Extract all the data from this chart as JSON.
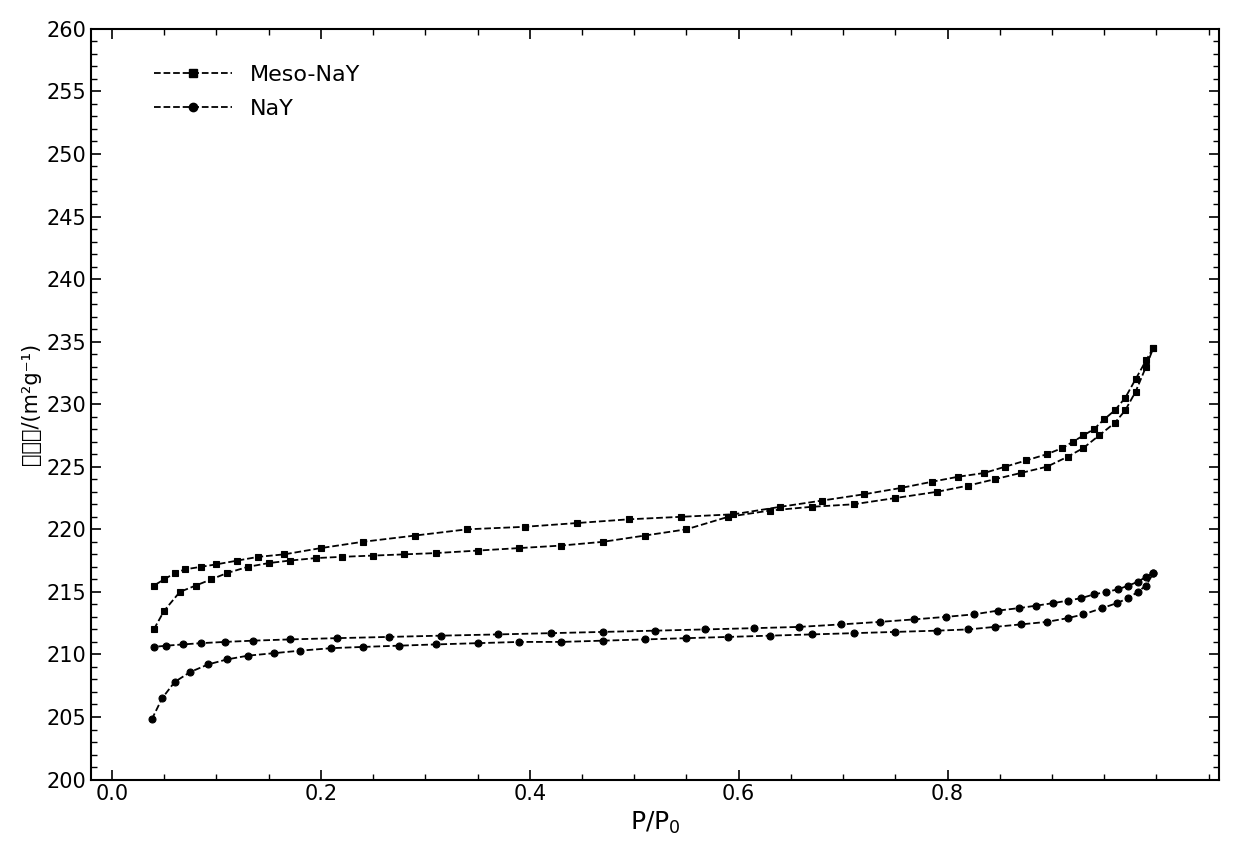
{
  "title": "",
  "xlabel": "P/P$_0$",
  "ylabel": "表面积/(m²g⁻¹)",
  "xlim": [
    0.0,
    1.05
  ],
  "ylim": [
    200,
    260
  ],
  "yticks": [
    200,
    205,
    210,
    215,
    220,
    225,
    230,
    235,
    240,
    245,
    250,
    255,
    260
  ],
  "xticks": [
    0.0,
    0.2,
    0.4,
    0.6,
    0.8
  ],
  "background_color": "#ffffff",
  "line_color": "#000000",
  "meso_nay_adsorption_x": [
    0.04,
    0.05,
    0.065,
    0.08,
    0.095,
    0.11,
    0.13,
    0.15,
    0.17,
    0.195,
    0.22,
    0.25,
    0.28,
    0.31,
    0.35,
    0.39,
    0.43,
    0.47,
    0.51,
    0.55,
    0.59,
    0.63,
    0.67,
    0.71,
    0.75,
    0.79,
    0.82,
    0.845,
    0.87,
    0.895,
    0.915,
    0.93,
    0.945,
    0.96,
    0.97,
    0.98,
    0.99,
    0.997
  ],
  "meso_nay_adsorption_y": [
    212.0,
    213.5,
    215.0,
    215.5,
    216.0,
    216.5,
    217.0,
    217.3,
    217.5,
    217.7,
    217.8,
    217.9,
    218.0,
    218.1,
    218.3,
    218.5,
    218.7,
    219.0,
    219.5,
    220.0,
    221.0,
    221.5,
    221.8,
    222.0,
    222.5,
    223.0,
    223.5,
    224.0,
    224.5,
    225.0,
    225.8,
    226.5,
    227.5,
    228.5,
    229.5,
    231.0,
    233.0,
    234.5
  ],
  "meso_nay_desorption_x": [
    0.997,
    0.99,
    0.98,
    0.97,
    0.96,
    0.95,
    0.94,
    0.93,
    0.92,
    0.91,
    0.895,
    0.875,
    0.855,
    0.835,
    0.81,
    0.785,
    0.755,
    0.72,
    0.68,
    0.64,
    0.595,
    0.545,
    0.495,
    0.445,
    0.395,
    0.34,
    0.29,
    0.24,
    0.2,
    0.165,
    0.14,
    0.12,
    0.1,
    0.085,
    0.07,
    0.06,
    0.05,
    0.04
  ],
  "meso_nay_desorption_y": [
    234.5,
    233.5,
    232.0,
    230.5,
    229.5,
    228.8,
    228.0,
    227.5,
    227.0,
    226.5,
    226.0,
    225.5,
    225.0,
    224.5,
    224.2,
    223.8,
    223.3,
    222.8,
    222.3,
    221.8,
    221.2,
    221.0,
    220.8,
    220.5,
    220.2,
    220.0,
    219.5,
    219.0,
    218.5,
    218.0,
    217.8,
    217.5,
    217.2,
    217.0,
    216.8,
    216.5,
    216.0,
    215.5
  ],
  "nay_adsorption_x": [
    0.038,
    0.048,
    0.06,
    0.075,
    0.092,
    0.11,
    0.13,
    0.155,
    0.18,
    0.21,
    0.24,
    0.275,
    0.31,
    0.35,
    0.39,
    0.43,
    0.47,
    0.51,
    0.55,
    0.59,
    0.63,
    0.67,
    0.71,
    0.75,
    0.79,
    0.82,
    0.845,
    0.87,
    0.895,
    0.915,
    0.93,
    0.948,
    0.962,
    0.973,
    0.982,
    0.99,
    0.997
  ],
  "nay_adsorption_y": [
    204.8,
    206.5,
    207.8,
    208.6,
    209.2,
    209.6,
    209.9,
    210.1,
    210.3,
    210.5,
    210.6,
    210.7,
    210.8,
    210.9,
    211.0,
    211.0,
    211.1,
    211.2,
    211.3,
    211.4,
    211.5,
    211.6,
    211.7,
    211.8,
    211.9,
    212.0,
    212.2,
    212.4,
    212.6,
    212.9,
    213.2,
    213.7,
    214.1,
    214.5,
    215.0,
    215.5,
    216.5
  ],
  "nay_desorption_x": [
    0.997,
    0.99,
    0.982,
    0.973,
    0.963,
    0.952,
    0.94,
    0.928,
    0.915,
    0.901,
    0.885,
    0.868,
    0.848,
    0.825,
    0.798,
    0.768,
    0.735,
    0.698,
    0.658,
    0.615,
    0.568,
    0.52,
    0.47,
    0.42,
    0.37,
    0.315,
    0.265,
    0.215,
    0.17,
    0.135,
    0.108,
    0.085,
    0.068,
    0.052,
    0.04
  ],
  "nay_desorption_y": [
    216.5,
    216.2,
    215.8,
    215.5,
    215.2,
    215.0,
    214.8,
    214.5,
    214.3,
    214.1,
    213.9,
    213.7,
    213.5,
    213.2,
    213.0,
    212.8,
    212.6,
    212.4,
    212.2,
    212.1,
    212.0,
    211.9,
    211.8,
    211.7,
    211.6,
    211.5,
    211.4,
    211.3,
    211.2,
    211.1,
    211.0,
    210.9,
    210.8,
    210.7,
    210.6
  ],
  "legend_labels": [
    "Meso-NaY",
    "NaY"
  ]
}
